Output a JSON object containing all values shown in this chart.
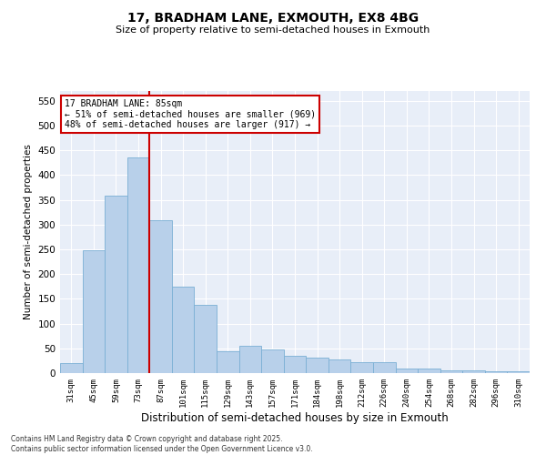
{
  "title_line1": "17, BRADHAM LANE, EXMOUTH, EX8 4BG",
  "title_line2": "Size of property relative to semi-detached houses in Exmouth",
  "xlabel": "Distribution of semi-detached houses by size in Exmouth",
  "ylabel": "Number of semi-detached properties",
  "categories": [
    "31sqm",
    "45sqm",
    "59sqm",
    "73sqm",
    "87sqm",
    "101sqm",
    "115sqm",
    "129sqm",
    "143sqm",
    "157sqm",
    "171sqm",
    "184sqm",
    "198sqm",
    "212sqm",
    "226sqm",
    "240sqm",
    "254sqm",
    "268sqm",
    "282sqm",
    "296sqm",
    "310sqm"
  ],
  "values": [
    20,
    248,
    358,
    435,
    308,
    175,
    138,
    45,
    55,
    47,
    35,
    32,
    28,
    22,
    22,
    10,
    10,
    5,
    5,
    3,
    3
  ],
  "bar_color": "#b8d0ea",
  "bar_edgecolor": "#7aafd4",
  "vline_color": "#cc0000",
  "annotation_title": "17 BRADHAM LANE: 85sqm",
  "annotation_line1": "← 51% of semi-detached houses are smaller (969)",
  "annotation_line2": "48% of semi-detached houses are larger (917) →",
  "annotation_box_color": "#cc0000",
  "ylim": [
    0,
    570
  ],
  "yticks": [
    0,
    50,
    100,
    150,
    200,
    250,
    300,
    350,
    400,
    450,
    500,
    550
  ],
  "background_color": "#e8eef8",
  "footer_line1": "Contains HM Land Registry data © Crown copyright and database right 2025.",
  "footer_line2": "Contains public sector information licensed under the Open Government Licence v3.0."
}
